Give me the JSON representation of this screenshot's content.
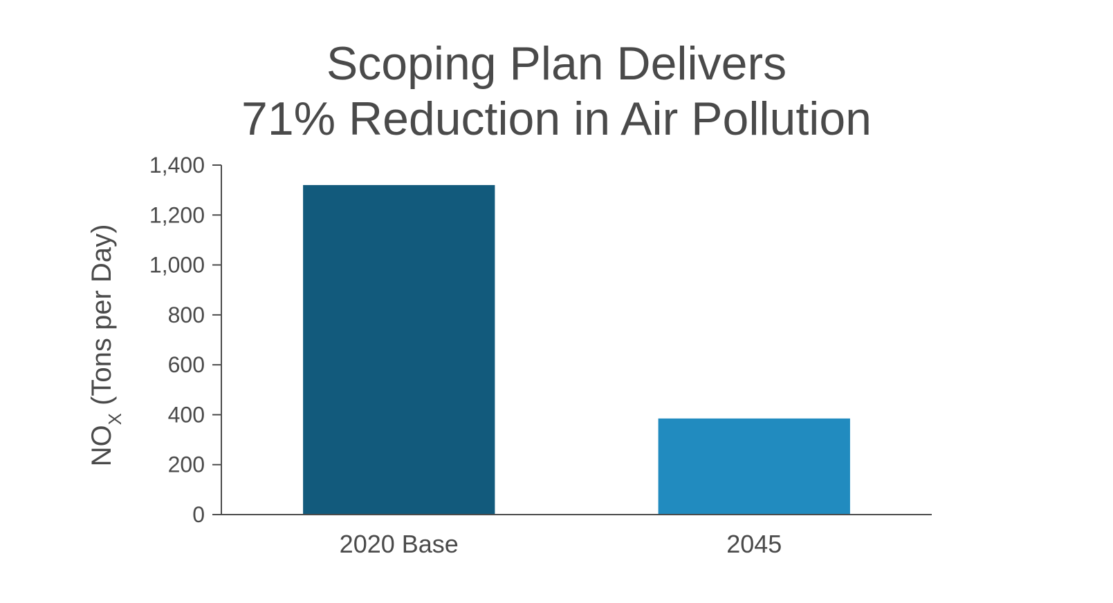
{
  "chart_data": {
    "type": "bar",
    "title_lines": [
      "Scoping Plan Delivers",
      "71% Reduction in Air Pollution"
    ],
    "categories": [
      "2020 Base",
      "2045"
    ],
    "values": [
      1320,
      385
    ],
    "colors": [
      "#125a7c",
      "#218bbf"
    ],
    "ylabel": {
      "main": "NO",
      "subscript": "X",
      "rest": " (Tons per Day)"
    },
    "xlabel": "",
    "ylim": [
      0,
      1400
    ],
    "yticks": [
      0,
      200,
      400,
      600,
      800,
      1000,
      1200,
      1400
    ],
    "ytick_labels": [
      "0",
      "200",
      "400",
      "600",
      "800",
      "1,000",
      "1,200",
      "1,400"
    ],
    "grid": false,
    "axis_color": "#4a4a4a"
  }
}
